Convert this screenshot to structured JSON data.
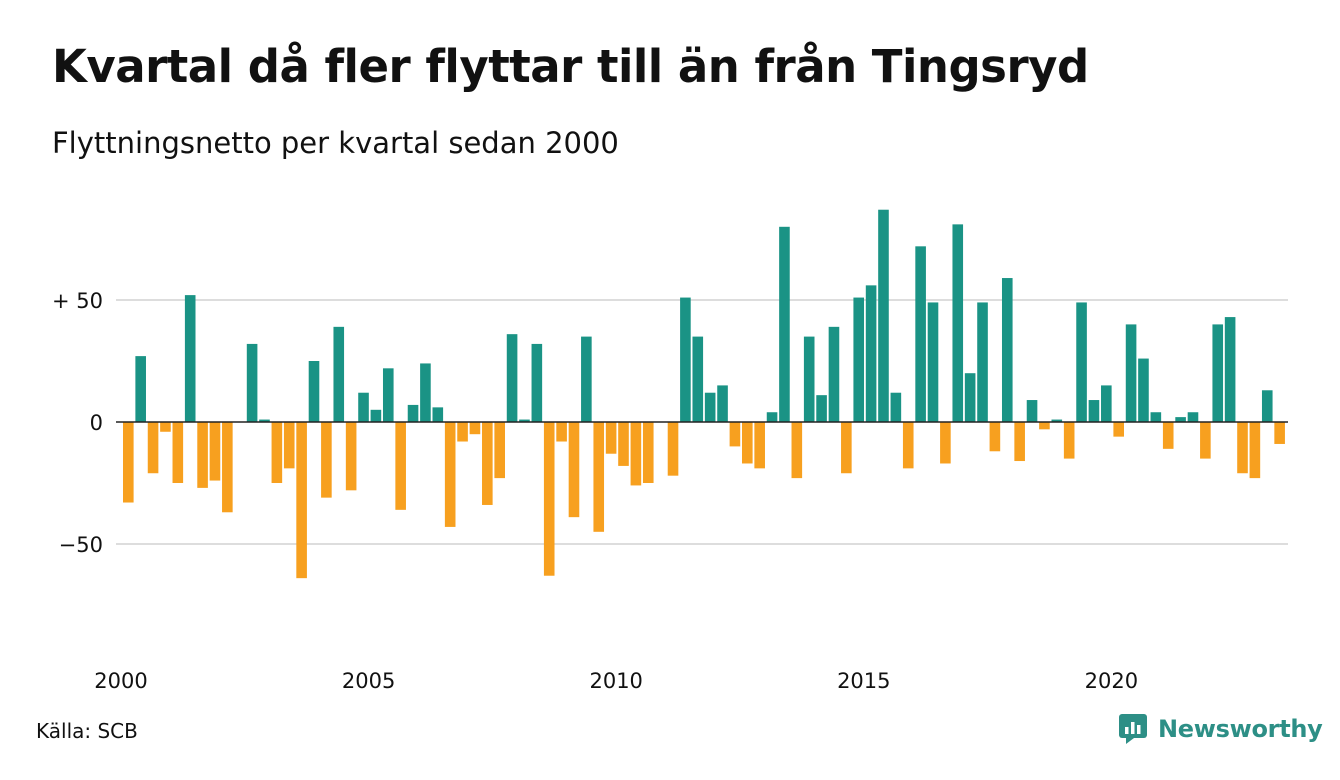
{
  "title": "Kvartal då fler flyttar till än från Tingsryd",
  "subtitle": "Flyttningsnetto per kvartal sedan 2000",
  "source": "Källa: SCB",
  "brand": "Newsworthy",
  "colors": {
    "positive": "#1a9385",
    "negative": "#f7a01f",
    "grid": "#dddddd",
    "zero_line": "#222222",
    "brand": "#2d8f86"
  },
  "chart_data": {
    "type": "bar",
    "start_quarter": "2000 Q1",
    "x_tick_labels": [
      "2000",
      "2005",
      "2010",
      "2015",
      "2020"
    ],
    "y_ticks": [
      {
        "value": 50,
        "label": "+ 50"
      },
      {
        "value": 0,
        "label": "0"
      },
      {
        "value": -50,
        "label": "−50"
      }
    ],
    "ylim": [
      -82,
      88
    ],
    "grid": true,
    "values": [
      -33,
      27,
      -21,
      -4,
      -25,
      52,
      -27,
      -24,
      -37,
      null,
      32,
      1,
      -25,
      -19,
      -64,
      25,
      -31,
      39,
      -28,
      12,
      5,
      22,
      -36,
      7,
      24,
      6,
      -43,
      -8,
      -5,
      -34,
      -23,
      36,
      1,
      32,
      -63,
      -8,
      -39,
      35,
      -45,
      -13,
      -18,
      -26,
      -25,
      null,
      -22,
      51,
      35,
      12,
      15,
      -10,
      -17,
      -19,
      4,
      80,
      -23,
      35,
      11,
      39,
      -21,
      51,
      56,
      87,
      12,
      -19,
      72,
      49,
      -17,
      81,
      20,
      49,
      -12,
      59,
      -16,
      9,
      -3,
      1,
      -15,
      49,
      9,
      15,
      -6,
      40,
      26,
      4,
      -11,
      2,
      4,
      -15,
      40,
      43,
      -21,
      -23,
      13,
      -9
    ]
  }
}
